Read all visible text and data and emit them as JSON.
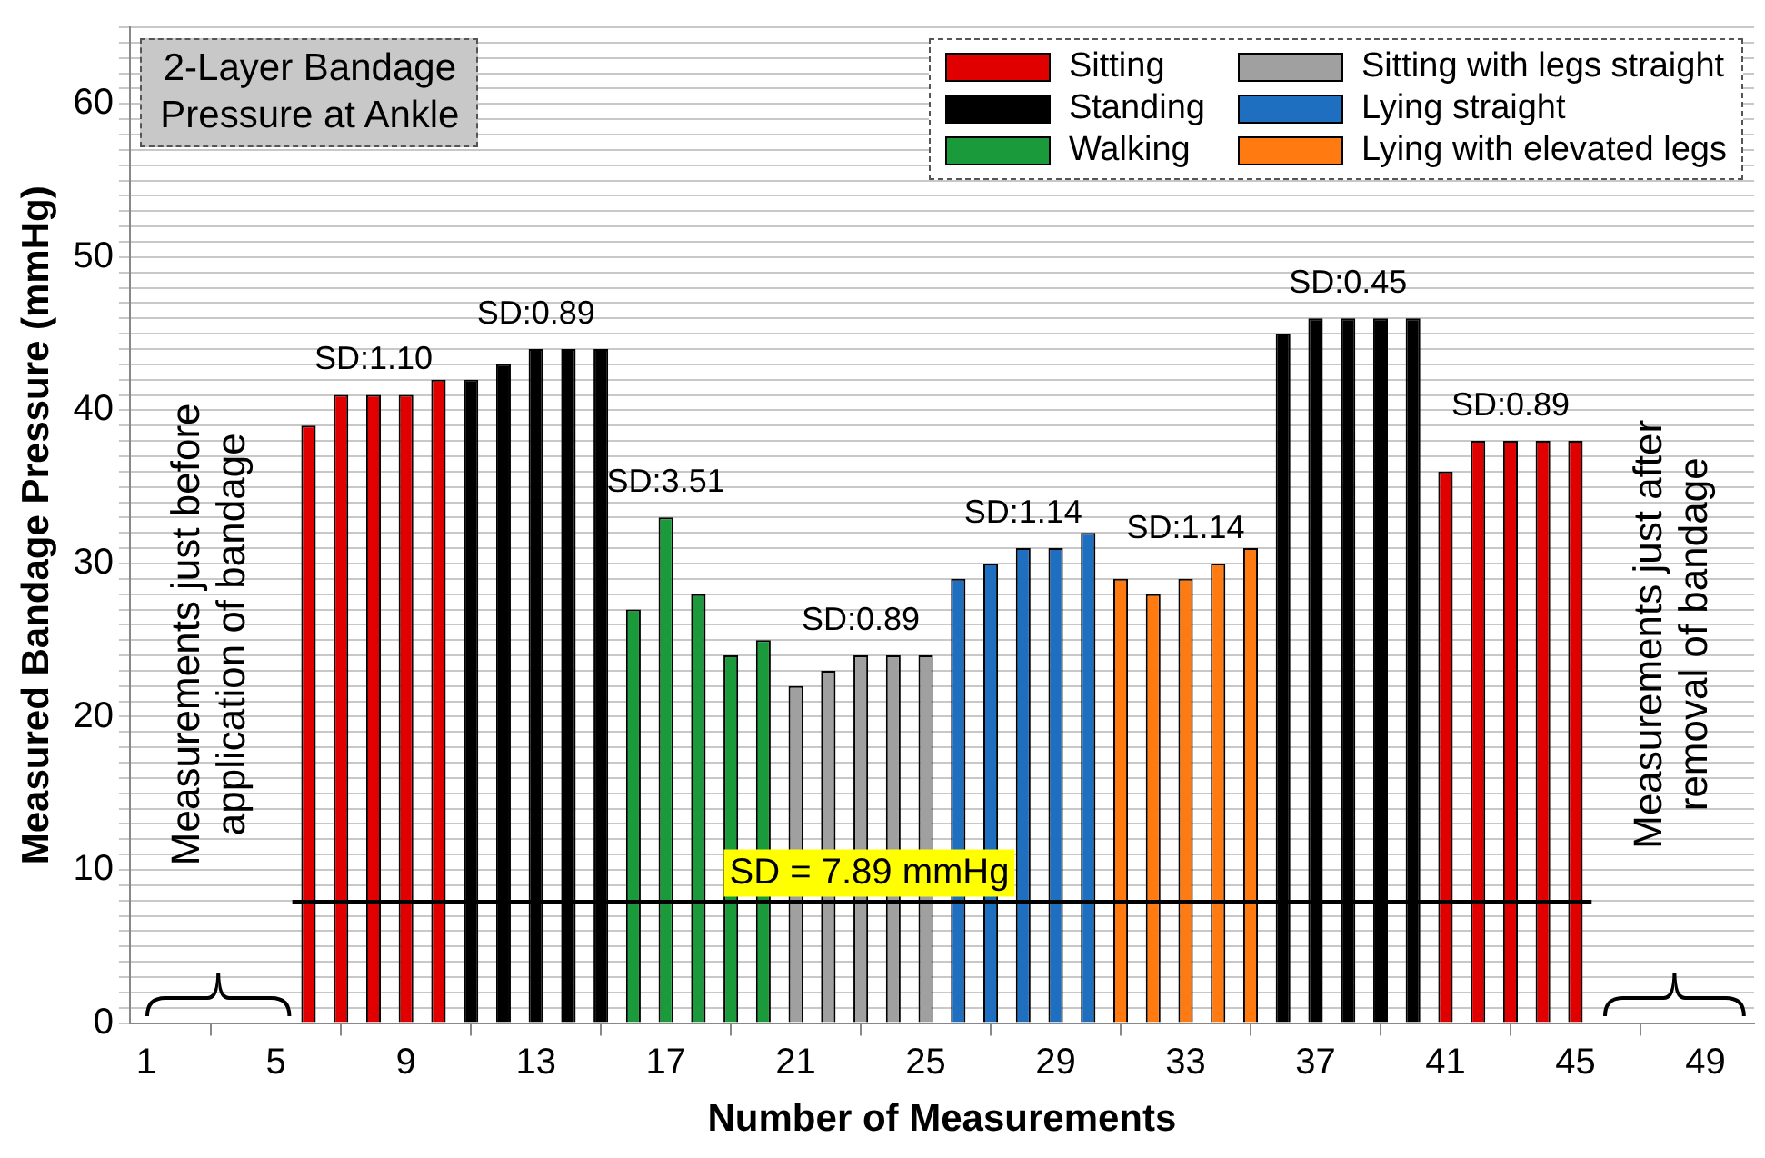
{
  "chart_data": {
    "type": "bar",
    "title": "2-Layer Bandage Pressure at Ankle",
    "xlabel": "Number of Measurements",
    "ylabel": "Measured Bandage Pressure (mmHg)",
    "series": [
      {
        "name": "Sitting",
        "color": "#e00000",
        "x": [
          6,
          7,
          8,
          9,
          10,
          41,
          42,
          43,
          44,
          45
        ],
        "values": [
          39,
          41,
          41,
          41,
          42,
          36,
          38,
          38,
          38,
          38
        ]
      },
      {
        "name": "Standing",
        "color": "#000000",
        "x": [
          11,
          12,
          13,
          14,
          15,
          36,
          37,
          38,
          39,
          40
        ],
        "values": [
          42,
          43,
          44,
          44,
          44,
          45,
          46,
          46,
          46,
          46
        ]
      },
      {
        "name": "Walking",
        "color": "#1a9a3a",
        "x": [
          16,
          17,
          18,
          19,
          20
        ],
        "values": [
          27,
          33,
          28,
          24,
          25
        ]
      },
      {
        "name": "Sitting with legs straight",
        "color": "#a0a0a0",
        "x": [
          21,
          22,
          23,
          24,
          25
        ],
        "values": [
          22,
          23,
          24,
          24,
          24
        ]
      },
      {
        "name": "Lying straight",
        "color": "#1f6fc0",
        "x": [
          26,
          27,
          28,
          29,
          30
        ],
        "values": [
          29,
          30,
          31,
          31,
          32
        ]
      },
      {
        "name": "Lying with elevated legs",
        "color": "#ff7a10",
        "x": [
          31,
          32,
          33,
          34,
          35
        ],
        "values": [
          29,
          28,
          29,
          30,
          31
        ]
      }
    ],
    "xlim": [
      0.5,
      50.5
    ],
    "xticks": [
      1,
      5,
      9,
      13,
      17,
      21,
      25,
      29,
      33,
      37,
      41,
      45,
      49
    ],
    "ylim": [
      0,
      65
    ],
    "yticks": [
      0,
      {
        "value": 1,
        "label": null
      },
      {
        "value": 2,
        "label": null
      },
      {
        "value": 3,
        "label": null
      },
      {
        "value": 4,
        "label": null
      },
      {
        "value": 5,
        "label": null
      },
      {
        "value": 6,
        "label": null
      },
      {
        "value": 7,
        "label": null
      },
      {
        "value": 8,
        "label": null
      },
      {
        "value": 9,
        "label": null
      },
      10,
      {
        "value": 11,
        "label": null
      },
      {
        "value": 12,
        "label": null
      },
      {
        "value": 13,
        "label": null
      },
      {
        "value": 14,
        "label": null
      },
      {
        "value": 15,
        "label": null
      },
      {
        "value": 16,
        "label": null
      },
      {
        "value": 17,
        "label": null
      },
      {
        "value": 18,
        "label": null
      },
      {
        "value": 19,
        "label": null
      },
      20,
      {
        "value": 21,
        "label": null
      },
      {
        "value": 22,
        "label": null
      },
      {
        "value": 23,
        "label": null
      },
      {
        "value": 24,
        "label": null
      },
      {
        "value": 25,
        "label": null
      },
      {
        "value": 26,
        "label": null
      },
      {
        "value": 27,
        "label": null
      },
      {
        "value": 28,
        "label": null
      },
      {
        "value": 29,
        "label": null
      },
      30,
      {
        "value": 31,
        "label": null
      },
      {
        "value": 32,
        "label": null
      },
      {
        "value": 33,
        "label": null
      },
      {
        "value": 34,
        "label": null
      },
      {
        "value": 35,
        "label": null
      },
      {
        "value": 36,
        "label": null
      },
      {
        "value": 37,
        "label": null
      },
      {
        "value": 38,
        "label": null
      },
      {
        "value": 39,
        "label": null
      },
      40,
      {
        "value": 41,
        "label": null
      },
      {
        "value": 42,
        "label": null
      },
      {
        "value": 43,
        "label": null
      },
      {
        "value": 44,
        "label": null
      },
      {
        "value": 45,
        "label": null
      },
      {
        "value": 46,
        "label": null
      },
      {
        "value": 47,
        "label": null
      },
      {
        "value": 48,
        "label": null
      },
      {
        "value": 49,
        "label": null
      },
      50,
      {
        "value": 51,
        "label": null
      },
      {
        "value": 52,
        "label": null
      },
      {
        "value": 53,
        "label": null
      },
      {
        "value": 54,
        "label": null
      },
      {
        "value": 55,
        "label": null
      },
      {
        "value": 56,
        "label": null
      },
      {
        "value": 57,
        "label": null
      },
      {
        "value": 58,
        "label": null
      },
      {
        "value": 59,
        "label": null
      },
      60,
      {
        "value": 61,
        "label": null
      },
      {
        "value": 62,
        "label": null
      },
      {
        "value": 63,
        "label": null
      },
      {
        "value": 64,
        "label": null
      },
      {
        "value": 65,
        "label": null
      }
    ],
    "grid": "y",
    "legend": "top right",
    "ref_lines": [
      {
        "axis": "y",
        "value": 7.89,
        "label": "SD = 7.89 mmHg",
        "color": "#000000"
      }
    ],
    "annotations": [
      "Measurements just before application of bandage",
      "Measurements just after removal of bandage",
      {
        "text": "SD:1.10",
        "x": 8,
        "y": 41
      },
      {
        "text": "SD:0.89",
        "x": 13,
        "y": 44
      },
      {
        "text": "SD:3.51",
        "x": 17,
        "y": 33
      },
      {
        "text": "SD:0.89",
        "x": 23,
        "y": 24
      },
      {
        "text": "SD:1.14",
        "x": 28,
        "y": 31
      },
      {
        "text": "SD:1.14",
        "x": 33,
        "y": 29
      },
      {
        "text": "SD:0.45",
        "x": 38,
        "y": 46
      },
      {
        "text": "SD:0.89",
        "x": 43,
        "y": 38
      }
    ]
  }
}
